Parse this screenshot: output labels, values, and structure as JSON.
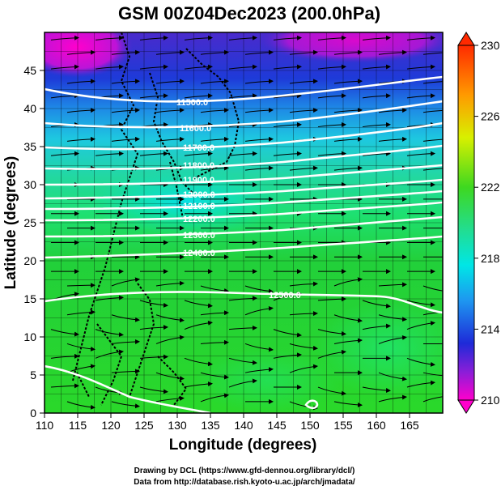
{
  "title": "GSM 00Z04Dec2023 (200.0hPa)",
  "xlabel": "Longitude (degrees)",
  "ylabel": "Latitude  (degrees)",
  "x_ticks": [
    "110",
    "115",
    "120",
    "125",
    "130",
    "135",
    "140",
    "145",
    "150",
    "155",
    "160",
    "165"
  ],
  "y_ticks": [
    "0",
    "5",
    "10",
    "15",
    "20",
    "25",
    "30",
    "35",
    "40",
    "45"
  ],
  "colorbar_ticks": [
    "230",
    "226",
    "222",
    "218",
    "214",
    "210"
  ],
  "contour_labels": [
    "11500.0",
    "11600.0",
    "11700.0",
    "11800.0",
    "11900.0",
    "12000.0",
    "12100.0",
    "12200.0",
    "12300.0",
    "12400.0",
    "12500.0"
  ],
  "credits": {
    "line1": "Drawing by DCL (https://www.gfd-dennou.org/library/dcl/)",
    "line2": "Data from http://database.rish.kyoto-u.ac.jp/arch/jmadata/"
  },
  "colors": {
    "low": "#ff00cc",
    "blue": "#1e1ee6",
    "cyan": "#00e6e6",
    "green": "#22cc22",
    "yellow": "#e6e600",
    "high": "#ff3300"
  },
  "chart_data": {
    "type": "heatmap",
    "xlim": [
      110,
      170
    ],
    "ylim": [
      0,
      50
    ],
    "colorbar_range": [
      210,
      230
    ],
    "colorbar_unit": "",
    "overlays": [
      "geopotential height contours (white)",
      "wind streamlines (black)",
      "coastlines"
    ]
  }
}
